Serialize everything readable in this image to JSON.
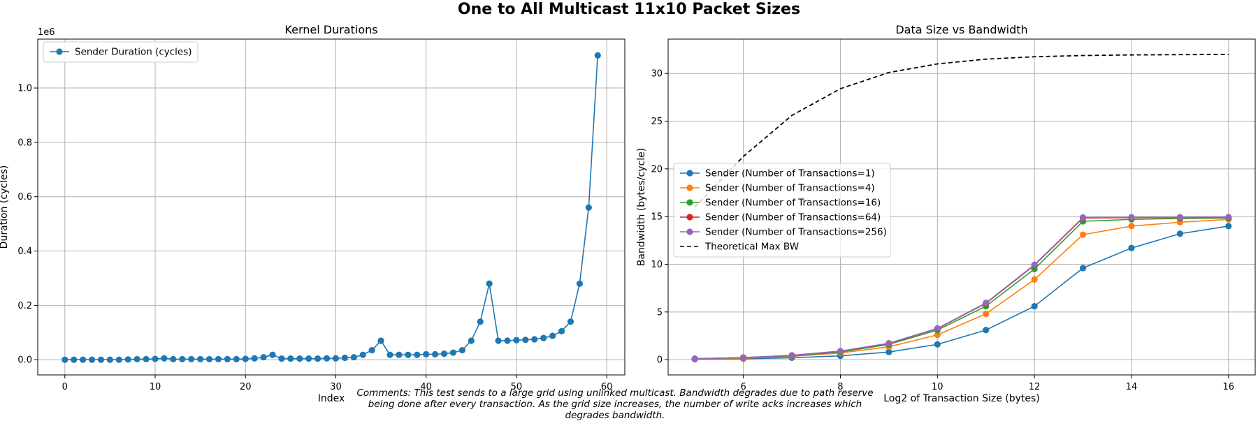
{
  "figure": {
    "title": "One to All Multicast 11x10 Packet Sizes",
    "comment": "Comments: This test sends to a large grid using unlinked multicast. Bandwidth degrades due to path reserve being done after every transaction. As the grid size increases, the number of write acks increases which degrades bandwidth."
  },
  "chart_data": [
    {
      "type": "line",
      "title": "Kernel Durations",
      "xlabel": "Index",
      "ylabel": "Duration (cycles)",
      "y_offset_label": "1e6",
      "xlim": [
        -3,
        62
      ],
      "ylim": [
        -0.056,
        1.18
      ],
      "xticks": [
        0,
        10,
        20,
        30,
        40,
        50,
        60
      ],
      "yticks": [
        0.0,
        0.2,
        0.4,
        0.6,
        0.8,
        1.0
      ],
      "ytick_labels": [
        "0.0",
        "0.2",
        "0.4",
        "0.6",
        "0.8",
        "1.0"
      ],
      "grid": true,
      "legend_position": "upper left",
      "series": [
        {
          "name": "Sender Duration (cycles)",
          "color": "#1f77b4",
          "marker": "circle",
          "x": [
            0,
            1,
            2,
            3,
            4,
            5,
            6,
            7,
            8,
            9,
            10,
            11,
            12,
            13,
            14,
            15,
            16,
            17,
            18,
            19,
            20,
            21,
            22,
            23,
            24,
            25,
            26,
            27,
            28,
            29,
            30,
            31,
            32,
            33,
            34,
            35,
            36,
            37,
            38,
            39,
            40,
            41,
            42,
            43,
            44,
            45,
            46,
            47,
            48,
            49,
            50,
            51,
            52,
            53,
            54,
            55,
            56,
            57,
            58,
            59
          ],
          "values": [
            0.0,
            0.0,
            0.0,
            0.0,
            0.0,
            0.0,
            0.0,
            0.001,
            0.002,
            0.002,
            0.003,
            0.005,
            0.002,
            0.002,
            0.002,
            0.002,
            0.002,
            0.002,
            0.002,
            0.002,
            0.003,
            0.005,
            0.009,
            0.018,
            0.004,
            0.004,
            0.004,
            0.004,
            0.004,
            0.005,
            0.005,
            0.007,
            0.009,
            0.018,
            0.035,
            0.07,
            0.018,
            0.018,
            0.018,
            0.018,
            0.02,
            0.02,
            0.022,
            0.026,
            0.035,
            0.07,
            0.14,
            0.28,
            0.07,
            0.07,
            0.072,
            0.073,
            0.075,
            0.08,
            0.088,
            0.105,
            0.14,
            0.28,
            0.56,
            1.12
          ]
        }
      ]
    },
    {
      "type": "line",
      "title": "Data Size vs Bandwidth",
      "xlabel": "Log2 of Transaction Size (bytes)",
      "ylabel": "Bandwidth (bytes/cycle)",
      "xlim": [
        4.45,
        16.55
      ],
      "ylim": [
        -1.6,
        33.6
      ],
      "xticks": [
        6,
        8,
        10,
        12,
        14,
        16
      ],
      "yticks": [
        0,
        5,
        10,
        15,
        20,
        25,
        30
      ],
      "grid": true,
      "legend_position": "center left",
      "x": [
        5,
        6,
        7,
        8,
        9,
        10,
        11,
        12,
        13,
        14,
        15,
        16
      ],
      "series": [
        {
          "name": "Sender (Number of Transactions=1)",
          "color": "#1f77b4",
          "marker": "circle",
          "values": [
            0.05,
            0.1,
            0.2,
            0.4,
            0.8,
            1.6,
            3.1,
            5.6,
            9.6,
            11.7,
            13.2,
            14.0
          ]
        },
        {
          "name": "Sender (Number of Transactions=4)",
          "color": "#ff7f0e",
          "marker": "circle",
          "values": [
            0.08,
            0.15,
            0.35,
            0.7,
            1.35,
            2.6,
            4.8,
            8.4,
            13.1,
            14.0,
            14.4,
            14.7
          ]
        },
        {
          "name": "Sender (Number of Transactions=16)",
          "color": "#2ca02c",
          "marker": "circle",
          "values": [
            0.1,
            0.2,
            0.4,
            0.8,
            1.6,
            3.1,
            5.6,
            9.5,
            14.5,
            14.7,
            14.8,
            14.85
          ]
        },
        {
          "name": "Sender (Number of Transactions=64)",
          "color": "#d62728",
          "marker": "circle",
          "values": [
            0.1,
            0.22,
            0.45,
            0.88,
            1.7,
            3.25,
            5.9,
            9.9,
            14.85,
            14.88,
            14.9,
            14.9
          ]
        },
        {
          "name": "Sender (Number of Transactions=256)",
          "color": "#9467bd",
          "marker": "circle",
          "values": [
            0.1,
            0.22,
            0.45,
            0.9,
            1.72,
            3.28,
            5.95,
            9.95,
            14.9,
            14.92,
            14.93,
            14.95
          ]
        },
        {
          "name": "Theoretical Max BW",
          "color": "#000000",
          "marker": "none",
          "dashed": true,
          "values": [
            16.0,
            21.3,
            25.6,
            28.4,
            30.1,
            31.0,
            31.5,
            31.75,
            31.88,
            31.94,
            31.97,
            31.99
          ]
        }
      ]
    }
  ]
}
